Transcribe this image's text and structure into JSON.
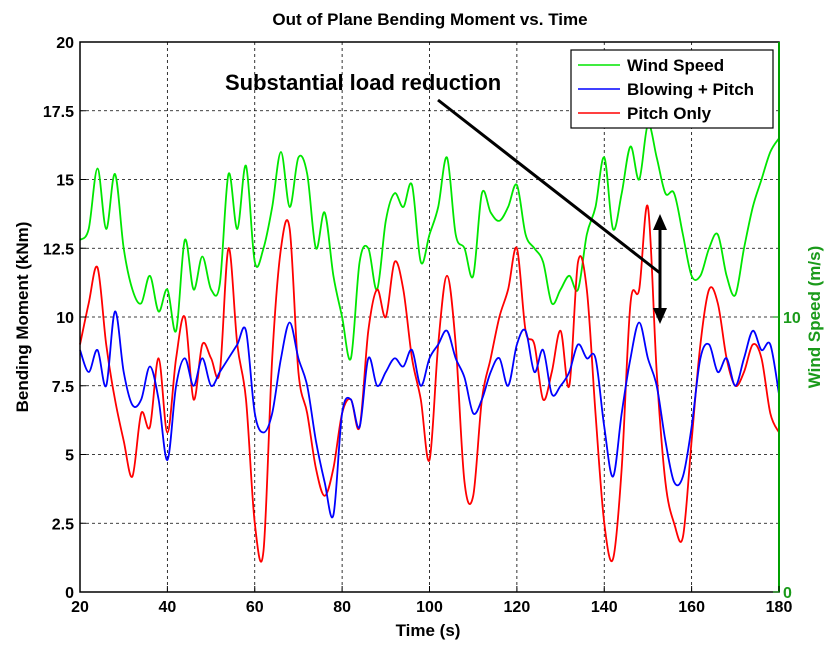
{
  "chart_data": {
    "type": "line",
    "title": "Out of Plane Bending Moment vs. Time",
    "xlabel": "Time (s)",
    "ylabel": "Bending Moment (kNm)",
    "y2label": "Wind Speed (m/s)",
    "xlim": [
      20,
      180
    ],
    "ylim": [
      0,
      20
    ],
    "y2lim": [
      0,
      20
    ],
    "xticks": [
      "20",
      "40",
      "60",
      "80",
      "100",
      "120",
      "140",
      "160",
      "180"
    ],
    "yticks": [
      "0",
      "2.5",
      "5",
      "7.5",
      "10",
      "12.5",
      "15",
      "17.5",
      "20"
    ],
    "y2ticks": [
      "0",
      "10"
    ],
    "grid": true,
    "legend_position": "top-right",
    "annotation": "Substantial load reduction",
    "series": [
      {
        "name": "Wind Speed",
        "color": "#00e600",
        "axis": "right",
        "x": [
          20,
          22,
          24,
          26,
          28,
          30,
          32,
          34,
          36,
          38,
          40,
          42,
          44,
          46,
          48,
          50,
          52,
          54,
          56,
          58,
          60,
          62,
          64,
          66,
          68,
          70,
          72,
          74,
          76,
          78,
          80,
          82,
          84,
          86,
          88,
          90,
          92,
          94,
          96,
          98,
          100,
          102,
          104,
          106,
          108,
          110,
          112,
          114,
          116,
          118,
          120,
          122,
          124,
          126,
          128,
          130,
          132,
          134,
          136,
          138,
          140,
          142,
          144,
          146,
          148,
          150,
          152,
          154,
          156,
          158,
          160,
          162,
          164,
          166,
          168,
          170,
          172,
          174,
          176,
          178,
          180
        ],
        "values": [
          12.8,
          13.2,
          15.4,
          13.2,
          15.2,
          12.5,
          11.0,
          10.5,
          11.5,
          10.2,
          11.0,
          9.5,
          12.8,
          11.0,
          12.2,
          11.0,
          11.2,
          15.2,
          13.2,
          15.5,
          12.0,
          12.5,
          14.0,
          16.0,
          14.0,
          15.8,
          15.2,
          12.5,
          13.8,
          11.5,
          10.0,
          8.5,
          12.0,
          12.5,
          11.0,
          13.5,
          14.5,
          14.0,
          14.8,
          12.0,
          13.0,
          14.0,
          15.8,
          13.0,
          12.5,
          11.5,
          14.5,
          13.8,
          13.5,
          14.0,
          14.8,
          13.0,
          12.5,
          12.0,
          10.5,
          11.0,
          11.5,
          11.0,
          13.0,
          14.0,
          15.8,
          13.2,
          14.5,
          16.2,
          15.0,
          17.0,
          15.8,
          14.5,
          14.5,
          13.0,
          11.5,
          11.5,
          12.5,
          13.0,
          11.5,
          10.8,
          12.5,
          14.0,
          15.0,
          16.0,
          16.5
        ]
      },
      {
        "name": "Blowing + Pitch",
        "color": "#0000ff",
        "axis": "left",
        "x": [
          20,
          22,
          24,
          26,
          28,
          30,
          32,
          34,
          36,
          38,
          40,
          42,
          44,
          46,
          48,
          50,
          52,
          54,
          56,
          58,
          60,
          62,
          64,
          66,
          68,
          70,
          72,
          74,
          76,
          78,
          80,
          82,
          84,
          86,
          88,
          90,
          92,
          94,
          96,
          98,
          100,
          102,
          104,
          106,
          108,
          110,
          112,
          114,
          116,
          118,
          120,
          122,
          124,
          126,
          128,
          130,
          132,
          134,
          136,
          138,
          140,
          142,
          144,
          146,
          148,
          150,
          152,
          154,
          156,
          158,
          160,
          162,
          164,
          166,
          168,
          170,
          172,
          174,
          176,
          178,
          180
        ],
        "values": [
          8.8,
          8.0,
          8.8,
          7.5,
          10.2,
          8.0,
          6.8,
          7.0,
          8.2,
          7.0,
          4.8,
          7.5,
          8.5,
          7.5,
          8.5,
          7.5,
          8.0,
          8.5,
          9.0,
          9.5,
          6.5,
          5.8,
          6.5,
          8.5,
          9.8,
          8.5,
          7.5,
          5.5,
          4.0,
          2.8,
          6.5,
          7.0,
          6.0,
          8.5,
          7.5,
          8.0,
          8.5,
          8.2,
          8.8,
          7.5,
          8.5,
          9.0,
          9.5,
          8.5,
          7.8,
          6.5,
          7.0,
          8.0,
          8.5,
          7.5,
          9.0,
          9.5,
          8.0,
          8.8,
          7.2,
          7.5,
          8.0,
          9.0,
          8.5,
          8.5,
          6.0,
          4.2,
          6.5,
          8.5,
          9.8,
          8.5,
          7.5,
          5.5,
          4.0,
          4.2,
          6.0,
          8.5,
          9.0,
          8.0,
          8.5,
          7.5,
          8.5,
          9.5,
          8.8,
          9.0,
          7.2
        ]
      },
      {
        "name": "Pitch Only",
        "color": "#ff0000",
        "axis": "left",
        "x": [
          20,
          22,
          24,
          26,
          28,
          30,
          32,
          34,
          36,
          38,
          40,
          42,
          44,
          46,
          48,
          50,
          52,
          54,
          56,
          58,
          60,
          62,
          64,
          66,
          68,
          70,
          72,
          74,
          76,
          78,
          80,
          82,
          84,
          86,
          88,
          90,
          92,
          94,
          96,
          98,
          100,
          102,
          104,
          106,
          108,
          110,
          112,
          114,
          116,
          118,
          120,
          122,
          124,
          126,
          128,
          130,
          132,
          134,
          136,
          138,
          140,
          142,
          144,
          146,
          148,
          150,
          152,
          154,
          156,
          158,
          160,
          162,
          164,
          166,
          168,
          170,
          172,
          174,
          176,
          178,
          180
        ],
        "values": [
          9.0,
          10.5,
          11.8,
          9.0,
          7.0,
          5.5,
          4.2,
          6.5,
          6.0,
          8.5,
          5.8,
          8.5,
          10.0,
          7.0,
          9.0,
          8.5,
          8.0,
          12.5,
          9.0,
          7.0,
          2.5,
          1.5,
          8.5,
          12.5,
          13.2,
          8.0,
          6.5,
          4.5,
          3.5,
          4.5,
          6.5,
          7.0,
          6.0,
          9.5,
          11.0,
          10.0,
          12.0,
          11.0,
          8.5,
          7.0,
          4.8,
          9.0,
          11.5,
          9.0,
          4.0,
          3.5,
          7.0,
          8.5,
          10.0,
          11.0,
          12.5,
          9.5,
          9.0,
          7.0,
          8.0,
          9.5,
          7.5,
          12.0,
          11.0,
          6.5,
          2.5,
          1.2,
          4.5,
          10.5,
          11.0,
          14.0,
          8.0,
          4.0,
          2.5,
          2.0,
          5.5,
          9.0,
          11.0,
          10.5,
          8.5,
          7.5,
          8.0,
          9.0,
          8.5,
          6.5,
          5.8
        ]
      }
    ]
  }
}
